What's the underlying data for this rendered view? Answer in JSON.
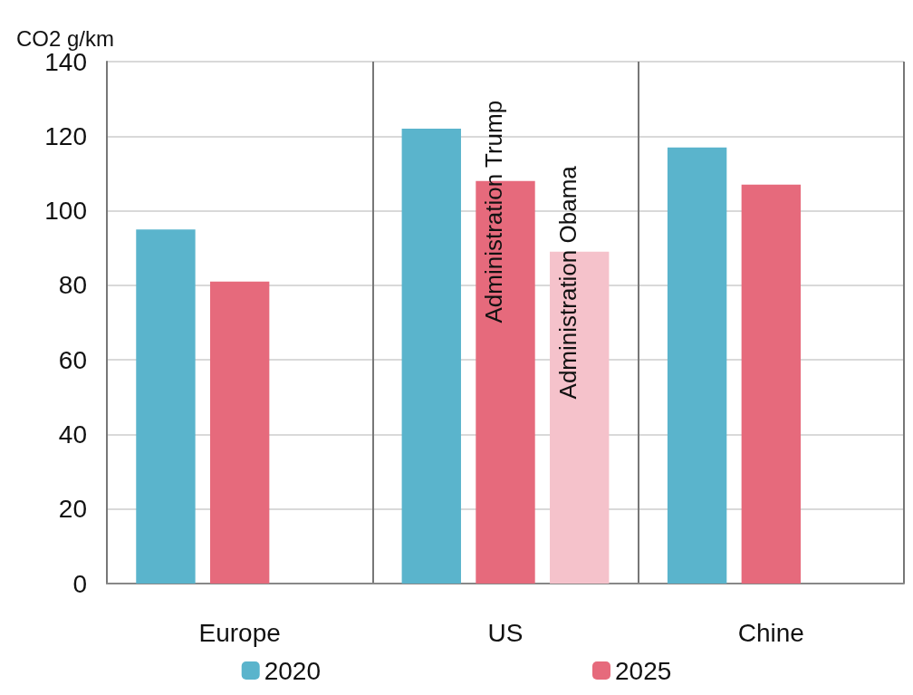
{
  "chart_data": {
    "type": "bar",
    "ylabel": "CO2 g/km",
    "categories": [
      "Europe",
      "US",
      "Chine"
    ],
    "series": [
      {
        "name": "2020",
        "color": "#5ab4cc",
        "values": [
          95,
          122,
          117
        ]
      },
      {
        "name": "2025",
        "color": "#e66a7c",
        "values": [
          81,
          108,
          107
        ]
      },
      {
        "color": "#f5c2cb",
        "values": [
          null,
          89,
          null
        ]
      }
    ],
    "ylim": [
      0,
      140
    ],
    "yticks": [
      0,
      20,
      40,
      60,
      80,
      100,
      120,
      140
    ],
    "grid": "y",
    "legend": "bottom",
    "annotations": [
      {
        "text": "Administration Trump",
        "x": "US",
        "y": 108
      },
      "Administration Obama"
    ]
  }
}
